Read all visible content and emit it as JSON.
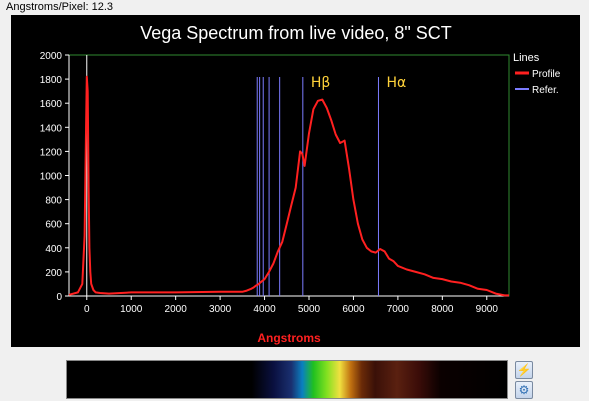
{
  "toolbar": {
    "pixel_scale": "Angstroms/Pixel: 12.3"
  },
  "icons": {
    "lightning": "lightning-icon",
    "gear": "gear-icon"
  },
  "chart_data": {
    "type": "line",
    "title": "Vega Spectrum from live video, 8\" SCT",
    "xlabel": "Angstroms",
    "ylabel": "",
    "xlim": [
      -400,
      9500
    ],
    "ylim": [
      0,
      2000
    ],
    "x_ticks": [
      0,
      1000,
      2000,
      3000,
      4000,
      5000,
      6000,
      7000,
      8000,
      9000
    ],
    "y_ticks": [
      0,
      200,
      400,
      600,
      800,
      1000,
      1200,
      1400,
      1600,
      1800,
      2000
    ],
    "legend": {
      "title": "Lines",
      "position": "right",
      "entries": [
        {
          "name": "Profile",
          "color": "#ff2020"
        },
        {
          "name": "Refer.",
          "color": "#7c7cff"
        }
      ]
    },
    "reference_lines": [
      3835,
      3889,
      3970,
      4102,
      4340,
      4861,
      6563
    ],
    "zero_marker": 0,
    "annotations": [
      {
        "text": "Hβ",
        "x": 4861
      },
      {
        "text": "Hα",
        "x": 6563
      }
    ],
    "series": [
      {
        "name": "Profile",
        "color": "#ff2020",
        "x": [
          -400,
          -200,
          -100,
          -50,
          -20,
          0,
          20,
          40,
          60,
          80,
          100,
          150,
          200,
          300,
          500,
          1000,
          2000,
          3000,
          3500,
          3600,
          3700,
          3750,
          3800,
          3850,
          3900,
          4000,
          4100,
          4200,
          4300,
          4400,
          4500,
          4600,
          4700,
          4800,
          4850,
          4900,
          5000,
          5100,
          5200,
          5300,
          5400,
          5500,
          5600,
          5700,
          5800,
          5900,
          6000,
          6100,
          6200,
          6300,
          6400,
          6500,
          6600,
          6700,
          6800,
          6900,
          7000,
          7200,
          7400,
          7600,
          7800,
          8000,
          8200,
          8400,
          8600,
          8800,
          9000,
          9200,
          9400,
          9500
        ],
        "y": [
          10,
          30,
          100,
          500,
          1300,
          1820,
          1700,
          900,
          400,
          200,
          100,
          50,
          30,
          25,
          20,
          30,
          30,
          35,
          35,
          45,
          60,
          70,
          85,
          95,
          110,
          140,
          200,
          270,
          370,
          450,
          600,
          750,
          900,
          1200,
          1180,
          1080,
          1350,
          1550,
          1620,
          1630,
          1560,
          1460,
          1340,
          1270,
          1290,
          1060,
          800,
          600,
          470,
          400,
          370,
          360,
          390,
          370,
          310,
          290,
          250,
          220,
          200,
          180,
          150,
          140,
          120,
          110,
          90,
          60,
          50,
          20,
          5,
          5
        ]
      }
    ]
  },
  "spectrum_strip": {
    "stops": [
      {
        "offset": 0.0,
        "color": "#000000"
      },
      {
        "offset": 0.42,
        "color": "#000000"
      },
      {
        "offset": 0.47,
        "color": "#0a1040"
      },
      {
        "offset": 0.51,
        "color": "#1a3070"
      },
      {
        "offset": 0.535,
        "color": "#0a80c0"
      },
      {
        "offset": 0.56,
        "color": "#20c020"
      },
      {
        "offset": 0.59,
        "color": "#80e020"
      },
      {
        "offset": 0.62,
        "color": "#f0e040"
      },
      {
        "offset": 0.645,
        "color": "#c07010"
      },
      {
        "offset": 0.67,
        "color": "#6a2a08"
      },
      {
        "offset": 0.7,
        "color": "#3a1008"
      },
      {
        "offset": 0.75,
        "color": "#5a2010"
      },
      {
        "offset": 0.8,
        "color": "#3a0c08"
      },
      {
        "offset": 0.85,
        "color": "#0a0000"
      },
      {
        "offset": 1.0,
        "color": "#000000"
      }
    ]
  }
}
